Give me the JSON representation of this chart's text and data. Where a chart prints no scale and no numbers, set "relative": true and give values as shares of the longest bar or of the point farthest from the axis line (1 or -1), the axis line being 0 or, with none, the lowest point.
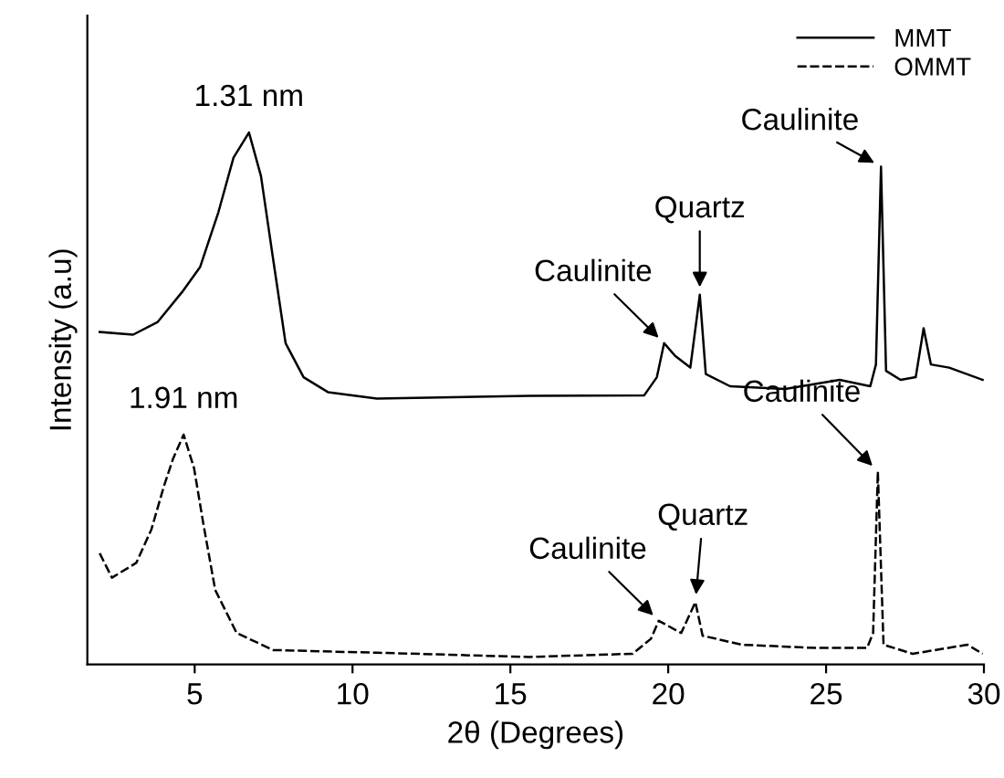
{
  "chart_data": {
    "type": "line",
    "relative": true,
    "xlabel": "2θ (Degrees)",
    "ylabel": "Intensity (a.u)",
    "xlim": [
      1.6,
      30
    ],
    "xticks": [
      5,
      10,
      15,
      20,
      25,
      30
    ],
    "tick_labels": "x",
    "legend": "top right",
    "grid": false,
    "series": [
      {
        "name": "MMT",
        "color": "#000000",
        "line_style": "solid",
        "x": [
          1.99,
          3.05,
          3.83,
          4.6,
          5.17,
          5.75,
          6.23,
          6.72,
          7.1,
          7.49,
          7.88,
          8.45,
          9.22,
          10.77,
          15.6,
          19.24,
          19.64,
          19.87,
          20.22,
          20.7,
          21.0,
          21.19,
          21.96,
          23.7,
          25.43,
          26.4,
          26.58,
          26.74,
          26.9,
          27.36,
          27.84,
          28.09,
          28.32,
          28.9,
          29.96
        ],
        "values": [
          0.625,
          0.62,
          0.644,
          0.7,
          0.747,
          0.85,
          0.953,
          1.0,
          0.918,
          0.76,
          0.604,
          0.54,
          0.512,
          0.5,
          0.505,
          0.506,
          0.54,
          0.604,
          0.58,
          0.558,
          0.695,
          0.546,
          0.523,
          0.518,
          0.535,
          0.523,
          0.564,
          0.936,
          0.552,
          0.535,
          0.54,
          0.632,
          0.564,
          0.558,
          0.535
        ]
      },
      {
        "name": "OMMT",
        "color": "#000000",
        "line_style": "dashed",
        "x": [
          1.99,
          2.38,
          3.15,
          3.63,
          4.02,
          4.31,
          4.65,
          4.98,
          5.27,
          5.65,
          6.33,
          7.49,
          10.77,
          15.6,
          18.87,
          19.45,
          19.7,
          20.41,
          20.86,
          21.09,
          22.34,
          24.66,
          26.3,
          26.49,
          26.64,
          26.82,
          27.74,
          29.48,
          29.96
        ],
        "values": [
          0.209,
          0.163,
          0.191,
          0.254,
          0.334,
          0.386,
          0.432,
          0.369,
          0.266,
          0.14,
          0.059,
          0.027,
          0.022,
          0.014,
          0.02,
          0.048,
          0.082,
          0.059,
          0.117,
          0.054,
          0.037,
          0.031,
          0.031,
          0.059,
          0.363,
          0.037,
          0.02,
          0.037,
          0.02
        ]
      }
    ],
    "annotations": [
      {
        "text": "1.31 nm",
        "x": 6.72,
        "y": 1.0
      },
      {
        "text": "Caulinite",
        "x": 19.87,
        "y": 0.604
      },
      {
        "text": "Quartz",
        "x": 21.0,
        "y": 0.695
      },
      {
        "text": "Caulinite",
        "x": 26.74,
        "y": 0.936
      },
      {
        "text": "1.91 nm",
        "x": 4.65,
        "y": 0.432
      },
      {
        "text": "Caulinite",
        "x": 19.7,
        "y": 0.082
      },
      {
        "text": "Quartz",
        "x": 20.86,
        "y": 0.117
      },
      {
        "text": "Caulinite",
        "x": 26.64,
        "y": 0.363
      }
    ]
  }
}
